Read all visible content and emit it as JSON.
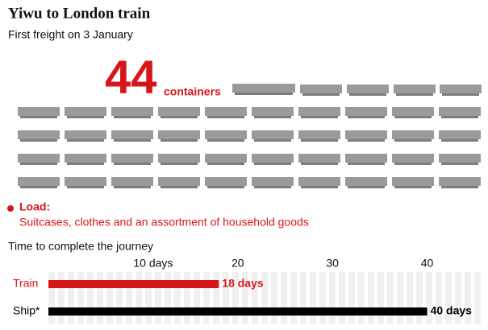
{
  "header": {
    "title": "Yiwu to London train",
    "subtitle": "First freight on 3 January"
  },
  "containers": {
    "count": 44,
    "label": "containers"
  },
  "load": {
    "label": "Load:",
    "text": "Suitcases, clothes and an assortment of household goods"
  },
  "chart_data": {
    "type": "bar",
    "orientation": "horizontal",
    "title": "Time to complete the journey",
    "categories": [
      "Train",
      "Ship*"
    ],
    "values": [
      18,
      40
    ],
    "value_labels": [
      "18 days",
      "40 days"
    ],
    "colors": [
      "#d7161b",
      "#000000"
    ],
    "label_colors": [
      "#d7161b",
      "#000000"
    ],
    "xlim": [
      0,
      46
    ],
    "xticks": [
      {
        "value": 10,
        "label": "10 days"
      },
      20,
      30,
      40
    ]
  }
}
